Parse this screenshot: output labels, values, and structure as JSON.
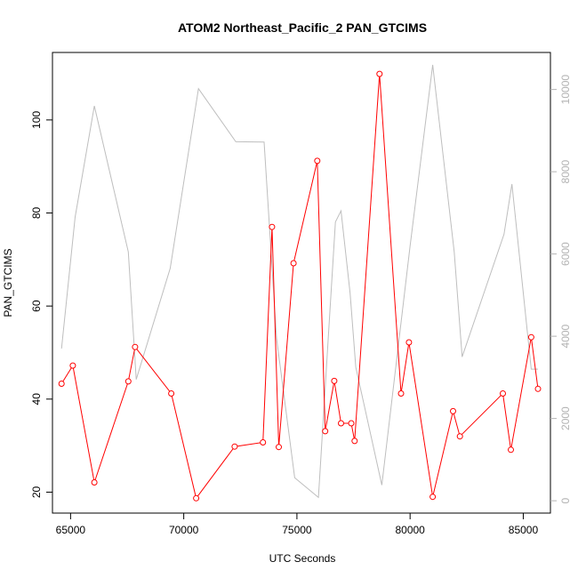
{
  "chart_data": {
    "type": "line",
    "title": "ATOM2 Northeast_Pacific_2 PAN_GTCIMS",
    "xlabel": "UTC Seconds",
    "ylabel": "PAN_GTCIMS",
    "xlim": [
      64200,
      86200
    ],
    "ylim": [
      15.5,
      114.5
    ],
    "y2lim": [
      -300,
      10900
    ],
    "x_ticks": [
      65000,
      70000,
      75000,
      80000,
      85000
    ],
    "y_ticks": [
      20,
      40,
      60,
      80,
      100
    ],
    "y2_ticks": [
      0,
      2000,
      4000,
      6000,
      8000,
      10000
    ],
    "grid": false,
    "series": [
      {
        "role": "primary",
        "color": "#ff0000",
        "marker": "open-circle",
        "x": [
          64600,
          65100,
          66050,
          67550,
          67850,
          69450,
          70550,
          72250,
          73500,
          73900,
          74200,
          74850,
          75900,
          76250,
          76650,
          76950,
          77400,
          77550,
          78650,
          79600,
          79950,
          81000,
          81900,
          82200,
          84100,
          84450,
          85350,
          85650
        ],
        "y": [
          43.3,
          47.2,
          22.1,
          43.8,
          51.2,
          41.2,
          18.7,
          29.8,
          30.7,
          77.0,
          29.7,
          69.2,
          91.2,
          33.1,
          43.9,
          34.8,
          34.8,
          31.0,
          109.9,
          41.2,
          52.2,
          19.0,
          37.4,
          32.0,
          41.2,
          29.1,
          53.3,
          42.2
        ]
      },
      {
        "role": "secondary",
        "color": "#bebebe",
        "marker": "none",
        "x": [
          64600,
          65200,
          66050,
          67550,
          67900,
          69400,
          70650,
          72300,
          73550,
          74100,
          74900,
          75950,
          76700,
          76950,
          77350,
          77600,
          78750,
          80000,
          81000,
          81950,
          82300,
          84150,
          84500,
          85350,
          85650
        ],
        "y": [
          3700,
          6900,
          9600,
          6050,
          2950,
          5650,
          10020,
          8730,
          8720,
          3950,
          560,
          80,
          6780,
          7050,
          5050,
          3250,
          380,
          6200,
          10600,
          6050,
          3500,
          6480,
          7700,
          3200,
          3200
        ]
      }
    ]
  }
}
